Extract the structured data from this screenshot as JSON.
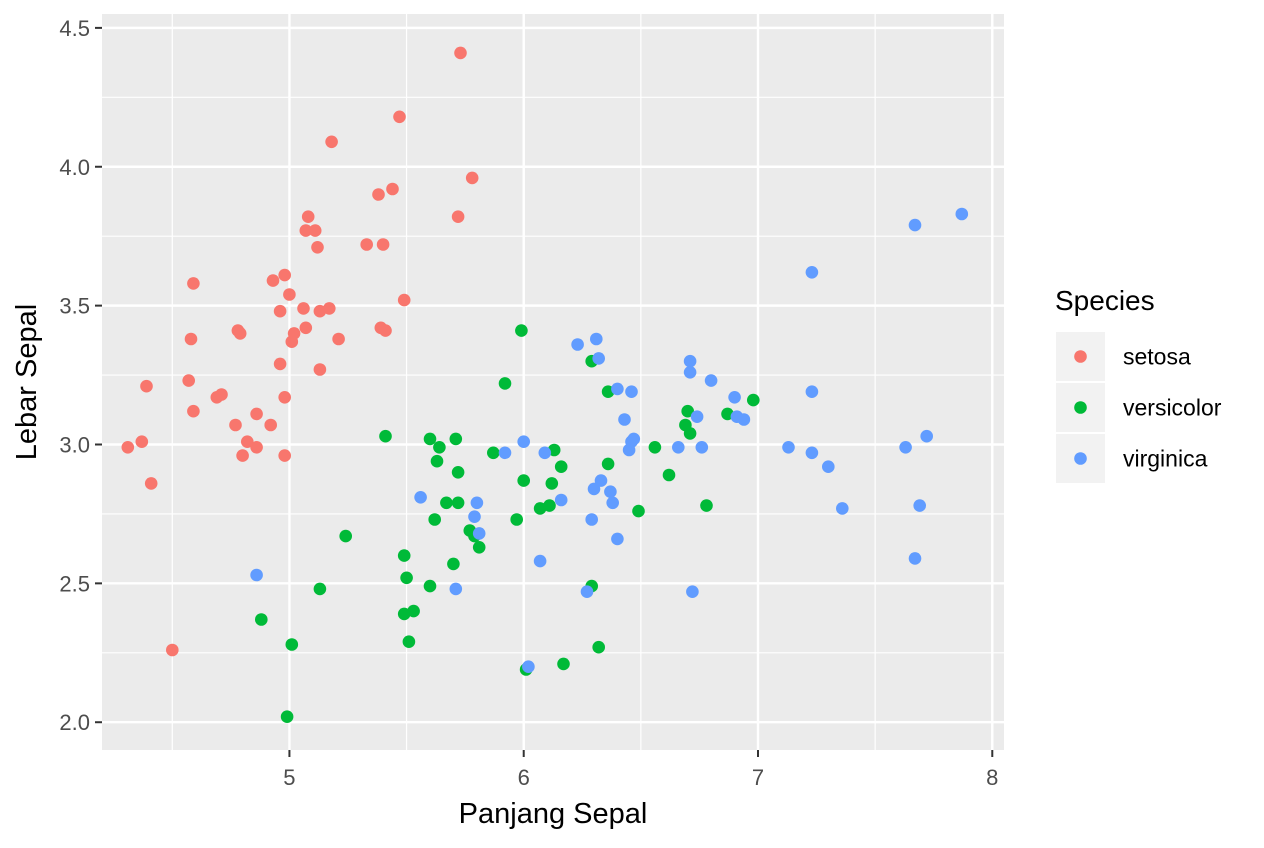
{
  "chart_data": {
    "type": "scatter",
    "title": "",
    "xlabel": "Panjang Sepal",
    "ylabel": "Lebar Sepal",
    "xlim": [
      4.2,
      8.05
    ],
    "ylim": [
      1.9,
      4.55
    ],
    "xticks": [
      5,
      6,
      7,
      8
    ],
    "xtick_labels": [
      "5",
      "6",
      "7",
      "8"
    ],
    "yticks": [
      2.0,
      2.5,
      3.0,
      3.5,
      4.0,
      4.5
    ],
    "ytick_labels": [
      "2.0",
      "2.5",
      "3.0",
      "3.5",
      "4.0",
      "4.5"
    ],
    "grid": true,
    "panel_background": "#ebebeb",
    "grid_color": "#ffffff",
    "legend": {
      "title": "Species",
      "placement": "right"
    },
    "series": [
      {
        "name": "setosa",
        "color": "#f8766d",
        "points": [
          [
            4.31,
            2.99
          ],
          [
            4.37,
            3.01
          ],
          [
            4.41,
            2.86
          ],
          [
            4.39,
            3.21
          ],
          [
            4.5,
            2.26
          ],
          [
            4.57,
            3.23
          ],
          [
            4.58,
            3.38
          ],
          [
            4.59,
            3.12
          ],
          [
            4.59,
            3.58
          ],
          [
            4.69,
            3.17
          ],
          [
            4.71,
            3.18
          ],
          [
            4.77,
            3.07
          ],
          [
            4.78,
            3.41
          ],
          [
            4.79,
            3.4
          ],
          [
            4.8,
            2.96
          ],
          [
            4.82,
            3.01
          ],
          [
            4.86,
            2.99
          ],
          [
            4.86,
            3.11
          ],
          [
            4.92,
            3.07
          ],
          [
            4.93,
            3.59
          ],
          [
            4.96,
            3.48
          ],
          [
            4.96,
            3.29
          ],
          [
            4.98,
            3.61
          ],
          [
            4.98,
            3.17
          ],
          [
            4.98,
            2.96
          ],
          [
            5.0,
            3.54
          ],
          [
            5.01,
            3.37
          ],
          [
            5.02,
            3.4
          ],
          [
            5.06,
            3.49
          ],
          [
            5.07,
            3.42
          ],
          [
            5.07,
            3.77
          ],
          [
            5.08,
            3.82
          ],
          [
            5.11,
            3.77
          ],
          [
            5.12,
            3.71
          ],
          [
            5.13,
            3.48
          ],
          [
            5.13,
            3.27
          ],
          [
            5.17,
            3.49
          ],
          [
            5.18,
            4.09
          ],
          [
            5.21,
            3.38
          ],
          [
            5.33,
            3.72
          ],
          [
            5.38,
            3.9
          ],
          [
            5.39,
            3.42
          ],
          [
            5.4,
            3.72
          ],
          [
            5.41,
            3.41
          ],
          [
            5.44,
            3.92
          ],
          [
            5.47,
            4.18
          ],
          [
            5.49,
            3.52
          ],
          [
            5.72,
            3.82
          ],
          [
            5.73,
            4.41
          ],
          [
            5.78,
            3.96
          ]
        ]
      },
      {
        "name": "versicolor",
        "color": "#00ba38",
        "points": [
          [
            4.88,
            2.37
          ],
          [
            4.99,
            2.02
          ],
          [
            5.01,
            2.28
          ],
          [
            5.13,
            2.48
          ],
          [
            5.24,
            2.67
          ],
          [
            5.41,
            3.03
          ],
          [
            5.49,
            2.6
          ],
          [
            5.49,
            2.39
          ],
          [
            5.5,
            2.52
          ],
          [
            5.51,
            2.29
          ],
          [
            5.53,
            2.4
          ],
          [
            5.6,
            2.49
          ],
          [
            5.6,
            3.02
          ],
          [
            5.62,
            2.73
          ],
          [
            5.63,
            2.94
          ],
          [
            5.64,
            2.99
          ],
          [
            5.67,
            2.79
          ],
          [
            5.7,
            2.57
          ],
          [
            5.71,
            3.02
          ],
          [
            5.72,
            2.79
          ],
          [
            5.72,
            2.9
          ],
          [
            5.77,
            2.69
          ],
          [
            5.79,
            2.67
          ],
          [
            5.81,
            2.63
          ],
          [
            5.87,
            2.97
          ],
          [
            5.92,
            3.22
          ],
          [
            5.97,
            2.73
          ],
          [
            5.99,
            3.41
          ],
          [
            6.0,
            2.87
          ],
          [
            6.01,
            2.19
          ],
          [
            6.07,
            2.77
          ],
          [
            6.11,
            2.78
          ],
          [
            6.12,
            2.86
          ],
          [
            6.13,
            2.98
          ],
          [
            6.16,
            2.92
          ],
          [
            6.17,
            2.21
          ],
          [
            6.29,
            3.3
          ],
          [
            6.29,
            2.49
          ],
          [
            6.32,
            2.27
          ],
          [
            6.36,
            2.93
          ],
          [
            6.36,
            3.19
          ],
          [
            6.49,
            2.76
          ],
          [
            6.56,
            2.99
          ],
          [
            6.62,
            2.89
          ],
          [
            6.69,
            3.07
          ],
          [
            6.7,
            3.12
          ],
          [
            6.71,
            3.04
          ],
          [
            6.78,
            2.78
          ],
          [
            6.87,
            3.11
          ],
          [
            6.98,
            3.16
          ]
        ]
      },
      {
        "name": "virginica",
        "color": "#619cff",
        "points": [
          [
            4.86,
            2.53
          ],
          [
            5.56,
            2.81
          ],
          [
            5.71,
            2.48
          ],
          [
            5.79,
            2.74
          ],
          [
            5.8,
            2.79
          ],
          [
            5.81,
            2.68
          ],
          [
            5.92,
            2.97
          ],
          [
            6.0,
            3.01
          ],
          [
            6.02,
            2.2
          ],
          [
            6.07,
            2.58
          ],
          [
            6.09,
            2.97
          ],
          [
            6.16,
            2.8
          ],
          [
            6.23,
            3.36
          ],
          [
            6.27,
            2.47
          ],
          [
            6.29,
            2.73
          ],
          [
            6.3,
            2.84
          ],
          [
            6.31,
            3.38
          ],
          [
            6.32,
            3.31
          ],
          [
            6.33,
            2.87
          ],
          [
            6.37,
            2.83
          ],
          [
            6.38,
            2.79
          ],
          [
            6.4,
            3.2
          ],
          [
            6.4,
            2.66
          ],
          [
            6.43,
            3.09
          ],
          [
            6.45,
            2.98
          ],
          [
            6.46,
            3.01
          ],
          [
            6.46,
            3.19
          ],
          [
            6.47,
            3.02
          ],
          [
            6.66,
            2.99
          ],
          [
            6.71,
            3.3
          ],
          [
            6.71,
            3.26
          ],
          [
            6.72,
            2.47
          ],
          [
            6.74,
            3.1
          ],
          [
            6.76,
            2.99
          ],
          [
            6.8,
            3.23
          ],
          [
            6.9,
            3.17
          ],
          [
            6.91,
            3.1
          ],
          [
            6.94,
            3.09
          ],
          [
            7.13,
            2.99
          ],
          [
            7.23,
            3.62
          ],
          [
            7.23,
            3.19
          ],
          [
            7.23,
            2.97
          ],
          [
            7.3,
            2.92
          ],
          [
            7.36,
            2.77
          ],
          [
            7.63,
            2.99
          ],
          [
            7.67,
            3.79
          ],
          [
            7.67,
            2.59
          ],
          [
            7.69,
            2.78
          ],
          [
            7.72,
            3.03
          ],
          [
            7.87,
            3.83
          ]
        ]
      }
    ]
  }
}
